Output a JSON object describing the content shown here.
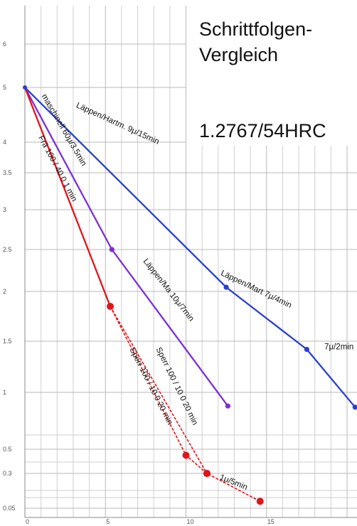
{
  "chart_data": {
    "type": "line",
    "title_lines": [
      "Schrittfolgen-",
      "Vergleich"
    ],
    "subtitle": "1.2767/54HRC",
    "x_tick_labels": [
      "0",
      "5",
      "10",
      "15"
    ],
    "y_tick_labels": [
      "6",
      "5",
      "4",
      "3.5",
      "3",
      "2.5",
      "2",
      "1.5",
      "1",
      "0.5",
      "0.3",
      "0.05"
    ],
    "xlim": [
      0,
      20.5
    ],
    "grid": true,
    "colors": {
      "blue": "#2a3fd0",
      "purple": "#7a2fd6",
      "red": "#e0151a",
      "grid": "#b9b9b9"
    },
    "series": [
      {
        "color": "#2a3fd0",
        "style": "solid",
        "points": [
          {
            "x": 0,
            "y": 5
          },
          {
            "x": 12.5,
            "y": 2.05
          },
          {
            "x": 17.5,
            "y": 1.42
          },
          {
            "x": 20.5,
            "y": 0.87
          }
        ]
      },
      {
        "color": "#7a2fd6",
        "style": "solid",
        "points": [
          {
            "x": 0,
            "y": 5
          },
          {
            "x": 5.4,
            "y": 2.5
          },
          {
            "x": 12.6,
            "y": 0.88
          }
        ]
      },
      {
        "color": "#e0151a",
        "style": "solid",
        "points": [
          {
            "x": 0,
            "y": 5
          },
          {
            "x": 5.3,
            "y": 1.85
          }
        ]
      },
      {
        "color": "#e0151a",
        "style": "dashed",
        "points": [
          {
            "x": 5.3,
            "y": 1.85
          },
          {
            "x": 10,
            "y": 0.45
          },
          {
            "x": 11.3,
            "y": 0.3
          },
          {
            "x": 14.6,
            "y": 0.1
          }
        ]
      },
      {
        "color": "#e0151a",
        "style": "dashed",
        "points": [
          {
            "x": 5.3,
            "y": 1.85
          },
          {
            "x": 11.3,
            "y": 0.3
          }
        ]
      }
    ],
    "annotations": [
      {
        "text": "Läppen/Hartm. 9μ/15min",
        "color": "#2a3fd0",
        "x": 5.7,
        "y": 4.3
      },
      {
        "text": "Läppen/Mart 7μ/4min",
        "color": "#2a3fd0",
        "x": 14.3,
        "y": 2.0
      },
      {
        "text": "7μ/2min",
        "color": "#2a3fd0",
        "x": 19.5,
        "y": 1.42
      },
      {
        "text": "maschinell 60μ/3.5min",
        "color": "#7a2fd6",
        "x": 2.3,
        "y": 4.2
      },
      {
        "text": "Läppen/Ma 10μ/7min",
        "color": "#7a2fd6",
        "x": 8.8,
        "y": 2.0
      },
      {
        "text": "Frä 100 / 40 0 1 min",
        "color": "#e0151a",
        "x": 1.9,
        "y": 3.55
      },
      {
        "text": "Sperr 100 / 10 0 20 min",
        "color": "#111111",
        "x": 7.7,
        "y": 1.05
      },
      {
        "text": "Sperr 100 / 10 0 20 min",
        "color": "#111111",
        "x": 9.3,
        "y": 1.05
      },
      {
        "text": "1μ/5min",
        "color": "#111111",
        "x": 12.9,
        "y": 0.22
      }
    ]
  }
}
